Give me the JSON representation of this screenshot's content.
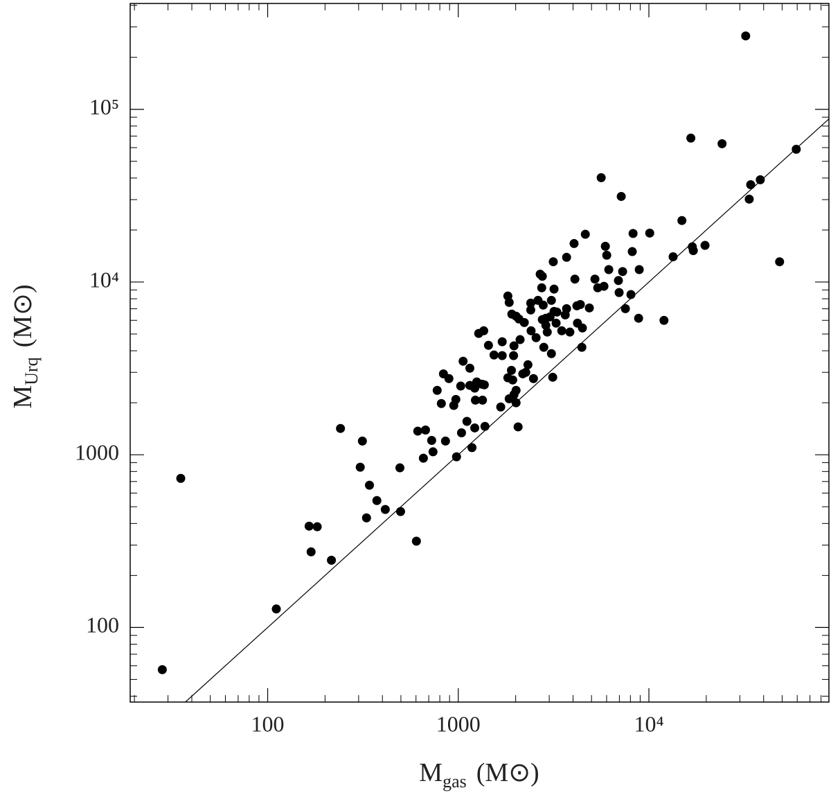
{
  "chart_data": {
    "type": "scatter",
    "xlabel": {
      "symbol": "M",
      "subscript": "gas",
      "unit": "(M⊙)"
    },
    "ylabel": {
      "symbol": "M",
      "subscript": "Urq",
      "unit": "(M⊙)"
    },
    "log_x": true,
    "log_y": true,
    "xlim": [
      19,
      88000
    ],
    "ylim": [
      37,
      410000
    ],
    "xticks": [
      100,
      1000,
      {
        "value": 10000,
        "label": "10⁴"
      }
    ],
    "yticks": [
      100,
      1000,
      {
        "value": 10000,
        "label": "10⁴"
      },
      {
        "value": 100000,
        "label": "10⁵"
      }
    ],
    "xminor_ticks": [
      20,
      30,
      40,
      50,
      60,
      70,
      80,
      90,
      200,
      300,
      400,
      500,
      600,
      700,
      800,
      900,
      2000,
      3000,
      4000,
      5000,
      6000,
      7000,
      8000,
      9000,
      20000,
      30000,
      40000,
      50000,
      60000,
      70000,
      80000
    ],
    "yminor_ticks": [
      40,
      50,
      60,
      70,
      80,
      90,
      200,
      300,
      400,
      500,
      600,
      700,
      800,
      900,
      2000,
      3000,
      4000,
      5000,
      6000,
      7000,
      8000,
      9000,
      20000,
      30000,
      40000,
      50000,
      60000,
      70000,
      80000,
      90000,
      200000,
      300000,
      400000
    ],
    "color": "#000000",
    "reference_line": {
      "x": [
        37,
        88000
      ],
      "y": [
        37,
        88000
      ]
    },
    "x": [
      28,
      35,
      111,
      165,
      169,
      182,
      216,
      241,
      306,
      314,
      330,
      342,
      374,
      414,
      494,
      498,
      603,
      613,
      673,
      656,
      725,
      737,
      775,
      815,
      836,
      857,
      893,
      947,
      979,
      971,
      1030,
      1040,
      1060,
      1110,
      1150,
      1150,
      1220,
      1180,
      1220,
      1230,
      1250,
      1280,
      1330,
      1340,
      1360,
      1370,
      1380,
      1440,
      1540,
      1670,
      1700,
      1700,
      1820,
      1820,
      1850,
      1850,
      1900,
      1950,
      1910,
      1930,
      1960,
      1960,
      2010,
      2010,
      2010,
      2060,
      2080,
      2110,
      2180,
      2220,
      2260,
      2320,
      2400,
      2400,
      2410,
      2480,
      2560,
      2620,
      2690,
      2740,
      2760,
      2760,
      2790,
      2810,
      2880,
      2880,
      2930,
      3030,
      3080,
      3080,
      3130,
      3150,
      3180,
      3180,
      3260,
      3290,
      3490,
      3640,
      3700,
      3700,
      3850,
      4050,
      4090,
      4190,
      4220,
      4370,
      4450,
      4480,
      4640,
      4870,
      5210,
      5390,
      5620,
      5810,
      5910,
      6010,
      6160,
      6920,
      6980,
      7160,
      7280,
      7530,
      8050,
      8180,
      8260,
      8830,
      8900,
      10100,
      12000,
      13400,
      14900,
      16600,
      16900,
      17100,
      19700,
      24200,
      32200,
      33600,
      34200,
      38400,
      48500,
      59300
    ],
    "values": [
      57,
      730,
      128,
      386,
      274,
      383,
      245,
      1420,
      847,
      1200,
      431,
      666,
      543,
      482,
      840,
      469,
      316,
      1370,
      1390,
      955,
      1210,
      1040,
      2360,
      1980,
      2940,
      1200,
      2760,
      1930,
      973,
      2090,
      2500,
      1340,
      3480,
      1560,
      2520,
      3170,
      2430,
      1100,
      1430,
      2070,
      2640,
      5040,
      2560,
      2070,
      5220,
      2540,
      1460,
      4300,
      3780,
      1890,
      3750,
      4510,
      8300,
      2790,
      7620,
      2110,
      3080,
      3750,
      6520,
      2710,
      4270,
      2230,
      6340,
      2360,
      2000,
      1450,
      6110,
      4640,
      2940,
      5830,
      3000,
      3320,
      7550,
      6890,
      5220,
      2760,
      4760,
      7830,
      11100,
      9260,
      10800,
      6060,
      7350,
      4190,
      6170,
      5620,
      5130,
      6280,
      3850,
      7830,
      2810,
      13100,
      9100,
      6760,
      5780,
      6700,
      5220,
      6450,
      13900,
      7010,
      5130,
      16700,
      10400,
      7280,
      5780,
      7410,
      4190,
      5420,
      18900,
      7080,
      10400,
      9260,
      40200,
      9450,
      16100,
      14300,
      11800,
      10200,
      8690,
      31300,
      11500,
      7010,
      8460,
      15000,
      19100,
      6170,
      11800,
      19200,
      6000,
      14000,
      22700,
      68100,
      16000,
      15200,
      16300,
      63200,
      266000,
      30200,
      36600,
      39100,
      13100,
      58700
    ]
  }
}
